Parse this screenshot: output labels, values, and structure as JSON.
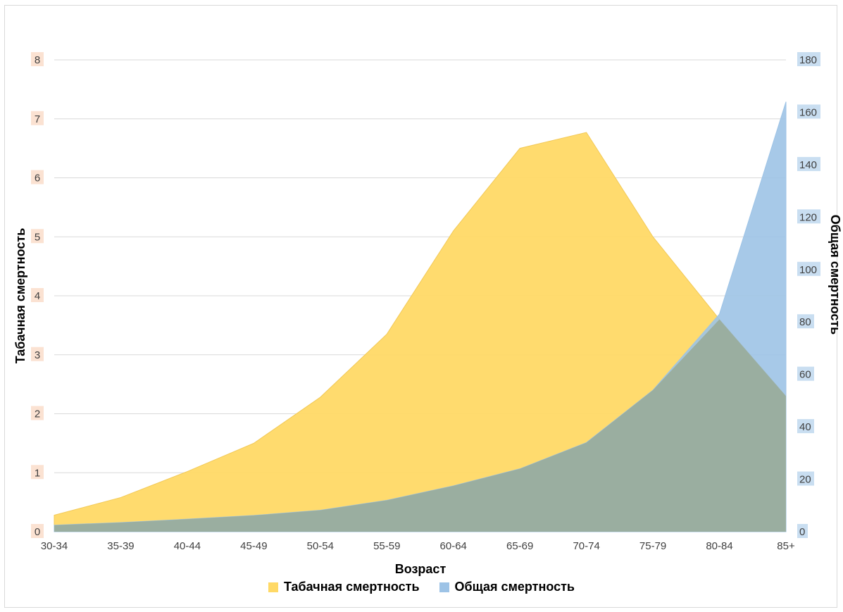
{
  "chart_data": {
    "type": "area",
    "xlabel": "Возраст",
    "ylabel_left": "Табачная смертность",
    "ylabel_right": "Общая смертность",
    "categories": [
      "30-34",
      "35-39",
      "40-44",
      "45-49",
      "50-54",
      "55-59",
      "60-64",
      "65-69",
      "70-74",
      "75-79",
      "80-84",
      "85+"
    ],
    "ylim_left": [
      0,
      8
    ],
    "ylim_right": [
      0,
      180
    ],
    "yticks_left": [
      0,
      1,
      2,
      3,
      4,
      5,
      6,
      7,
      8
    ],
    "yticks_right": [
      0,
      20,
      40,
      60,
      80,
      100,
      120,
      140,
      160,
      180
    ],
    "grid": true,
    "legend_position": "bottom",
    "series": [
      {
        "name": "Табачная смертность",
        "axis": "left",
        "color": "#ffd966",
        "line_color": "#f2c957",
        "values": [
          0.28,
          0.58,
          1.02,
          1.5,
          2.28,
          3.35,
          5.1,
          6.5,
          6.77,
          5.0,
          3.6,
          2.3
        ]
      },
      {
        "name": "Общая смертность",
        "axis": "right",
        "color": "#9dc3e6",
        "line_color": "#9dc3e6",
        "values": [
          2.5,
          3.5,
          4.8,
          6.2,
          8.2,
          12.0,
          17.5,
          24.0,
          34.0,
          54.0,
          83.0,
          164.0
        ]
      }
    ]
  }
}
